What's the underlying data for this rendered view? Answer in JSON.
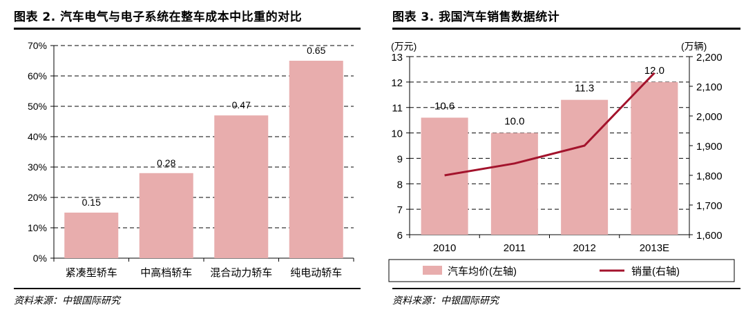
{
  "left": {
    "title": "图表 2. 汽车电气与电子系统在整车成本中比重的对比",
    "source": "资料来源：中银国际研究",
    "chart_data": {
      "type": "bar",
      "categories": [
        "紧凑型轿车",
        "中高档轿车",
        "混合动力轿车",
        "纯电动轿车"
      ],
      "values": [
        0.15,
        0.28,
        0.47,
        0.65
      ],
      "data_labels": [
        "0.15",
        "0.28",
        "0.47",
        "0.65"
      ],
      "ylim": [
        0,
        0.7
      ],
      "yticks": [
        0,
        0.1,
        0.2,
        0.3,
        0.4,
        0.5,
        0.6,
        0.7
      ],
      "ytick_labels": [
        "0%",
        "10%",
        "20%",
        "30%",
        "40%",
        "50%",
        "60%",
        "70%"
      ],
      "gridlines": "dashed",
      "bar_color": "#e8adad"
    }
  },
  "right": {
    "title": "图表 3. 我国汽车销售数据统计",
    "source": "资料来源：中银国际研究",
    "chart_data": {
      "type": "bar+line",
      "categories": [
        "2010",
        "2011",
        "2012",
        "2013E"
      ],
      "left_axis_unit": "(万元)",
      "right_axis_unit": "(万辆)",
      "left_ylim": [
        6,
        13
      ],
      "left_yticks": [
        6,
        7,
        8,
        9,
        10,
        11,
        12,
        13
      ],
      "left_ytick_labels": [
        "6",
        "7",
        "8",
        "9",
        "10",
        "11",
        "12",
        "13"
      ],
      "right_ylim": [
        1600,
        2200
      ],
      "right_yticks": [
        1600,
        1700,
        1800,
        1900,
        2000,
        2100,
        2200
      ],
      "right_ytick_labels": [
        "1,600",
        "1,700",
        "1,800",
        "1,900",
        "2,000",
        "2,100",
        "2,200"
      ],
      "series": [
        {
          "name": "汽车均价(左轴)",
          "type": "bar",
          "axis": "left",
          "values": [
            10.6,
            10.0,
            11.3,
            12.0
          ],
          "data_labels": [
            "10.6",
            "10.0",
            "11.3",
            "12.0"
          ],
          "color": "#e8adad"
        },
        {
          "name": "销量(右轴)",
          "type": "line",
          "axis": "right",
          "values": [
            1800,
            1840,
            1900,
            2145
          ],
          "color": "#a3132c"
        }
      ],
      "gridlines": "dashed"
    }
  }
}
